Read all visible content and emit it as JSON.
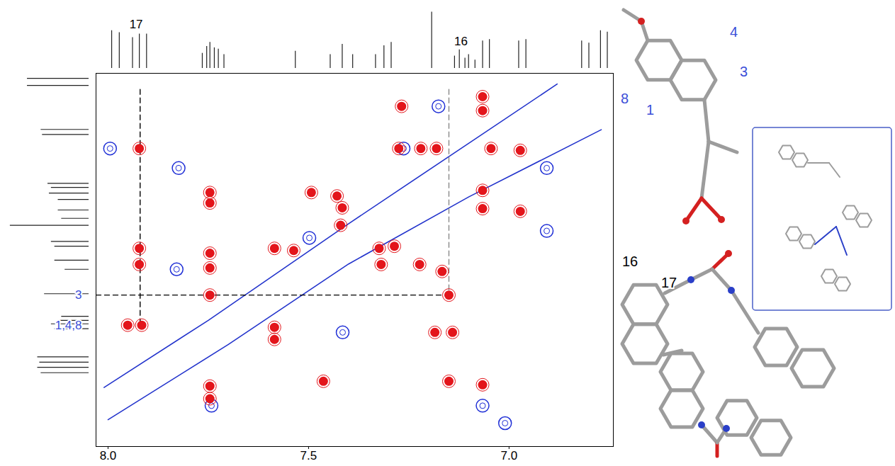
{
  "chart_data": {
    "type": "2d_nmr",
    "xlim": [
      8.03,
      6.74
    ],
    "xticks": [
      {
        "value": 8,
        "label": "8.0"
      },
      {
        "value": 7.5,
        "label": "7.5"
      },
      {
        "value": 7,
        "label": "7.0"
      }
    ],
    "ylim": [
      6.84,
      8.23
    ],
    "tick_labels": "x",
    "positive_peaks": {
      "color": "#e3151b",
      "x": [
        7.922,
        7.268,
        7.066,
        7.066,
        7.275,
        7.22,
        7.181,
        7.045,
        6.972,
        7.746,
        7.746,
        7.493,
        7.429,
        7.416,
        7.42,
        7.537,
        7.922,
        7.922,
        7.746,
        7.746,
        7.585,
        7.324,
        7.286,
        7.066,
        7.066,
        6.972,
        7.319,
        7.223,
        7.167,
        7.746,
        7.15,
        7.951,
        7.916,
        7.585,
        7.585,
        7.185,
        7.141,
        7.746,
        7.746,
        7.463,
        7.15,
        7.066
      ],
      "y": [
        7.12,
        6.963,
        6.927,
        6.979,
        7.12,
        7.12,
        7.12,
        7.12,
        7.127,
        7.284,
        7.323,
        7.284,
        7.297,
        7.341,
        7.406,
        7.5,
        7.492,
        7.552,
        7.51,
        7.565,
        7.492,
        7.492,
        7.484,
        7.276,
        7.344,
        7.354,
        7.552,
        7.552,
        7.578,
        7.666,
        7.666,
        7.778,
        7.778,
        7.786,
        7.831,
        7.805,
        7.805,
        8.005,
        8.052,
        7.987,
        7.987,
        8.0
      ]
    },
    "negative_peaks": {
      "color": "#1f2fd6",
      "x": [
        7.995,
        7.176,
        7.263,
        6.906,
        7.824,
        7.829,
        7.498,
        7.415,
        7.066,
        7.01,
        7.742,
        6.906
      ],
      "y": [
        7.12,
        6.963,
        7.12,
        7.193,
        7.193,
        7.57,
        7.453,
        7.805,
        8.078,
        8.143,
        8.078,
        7.427
      ]
    },
    "diagonal": [
      {
        "color": "#2233cc",
        "x": [
          8.01,
          7.75,
          7.4,
          7.1,
          6.88
        ],
        "y": [
          8.01,
          7.76,
          7.4,
          7.1,
          6.88
        ]
      },
      {
        "color": "#2233cc",
        "x": [
          8.0,
          7.7,
          7.4,
          7.1,
          6.77
        ],
        "y": [
          8.13,
          7.85,
          7.55,
          7.3,
          7.05
        ]
      }
    ],
    "guide_lines": [
      {
        "color": "#000000",
        "line_style": "dashed",
        "x": [
          7.92,
          7.92
        ],
        "y": [
          6.9,
          7.79
        ]
      },
      {
        "color": "#000000",
        "line_style": "dashed",
        "x": [
          8.03,
          7.15
        ],
        "y": [
          7.666,
          7.666
        ]
      },
      {
        "color": "#888888",
        "line_style": "dashed",
        "x": [
          7.15,
          7.15
        ],
        "y": [
          6.9,
          7.666
        ]
      }
    ],
    "x_projection": {
      "x": [
        7.991,
        7.972,
        7.939,
        7.922,
        7.904,
        7.765,
        7.754,
        7.746,
        7.735,
        7.725,
        7.711,
        7.533,
        7.446,
        7.416,
        7.39,
        7.333,
        7.312,
        7.294,
        7.193,
        7.136,
        7.124,
        7.11,
        7.101,
        7.085,
        7.066,
        7.049,
        6.976,
        6.958,
        6.819,
        6.801,
        6.772,
        6.755
      ],
      "intensity": [
        55,
        52,
        45,
        50,
        50,
        22,
        32,
        38,
        30,
        28,
        20,
        25,
        20,
        35,
        20,
        20,
        33,
        38,
        82,
        18,
        27,
        15,
        20,
        12,
        40,
        42,
        40,
        42,
        40,
        37,
        55,
        53
      ],
      "labels": [
        {
          "text": "17",
          "x": 7.93,
          "color": "#000000"
        },
        {
          "text": "16",
          "x": 7.12,
          "color": "#000000"
        }
      ]
    },
    "y_projection": {
      "y": [
        6.859,
        6.885,
        7.049,
        7.068,
        7.25,
        7.265,
        7.286,
        7.31,
        7.349,
        7.38,
        7.406,
        7.466,
        7.484,
        7.536,
        7.57,
        7.661,
        7.745,
        7.76,
        7.773,
        7.791,
        7.896,
        7.916,
        7.935,
        7.955
      ],
      "intensity": [
        90,
        90,
        70,
        68,
        60,
        55,
        58,
        45,
        45,
        40,
        115,
        55,
        50,
        50,
        35,
        65,
        40,
        45,
        55,
        50,
        75,
        72,
        75,
        70
      ],
      "labels": [
        {
          "text": "3",
          "y": 7.666,
          "color": "#3b4fd8"
        },
        {
          "text": "1,4,8",
          "y": 7.78,
          "color": "#3b4fd8"
        }
      ]
    },
    "structure_labels": [
      {
        "text": "4",
        "color": "#3b4fd8"
      },
      {
        "text": "3",
        "color": "#3b4fd8"
      },
      {
        "text": "8",
        "color": "#3b4fd8"
      },
      {
        "text": "1",
        "color": "#3b4fd8"
      },
      {
        "text": "16",
        "color": "#000000"
      },
      {
        "text": "17",
        "color": "#000000"
      }
    ]
  }
}
